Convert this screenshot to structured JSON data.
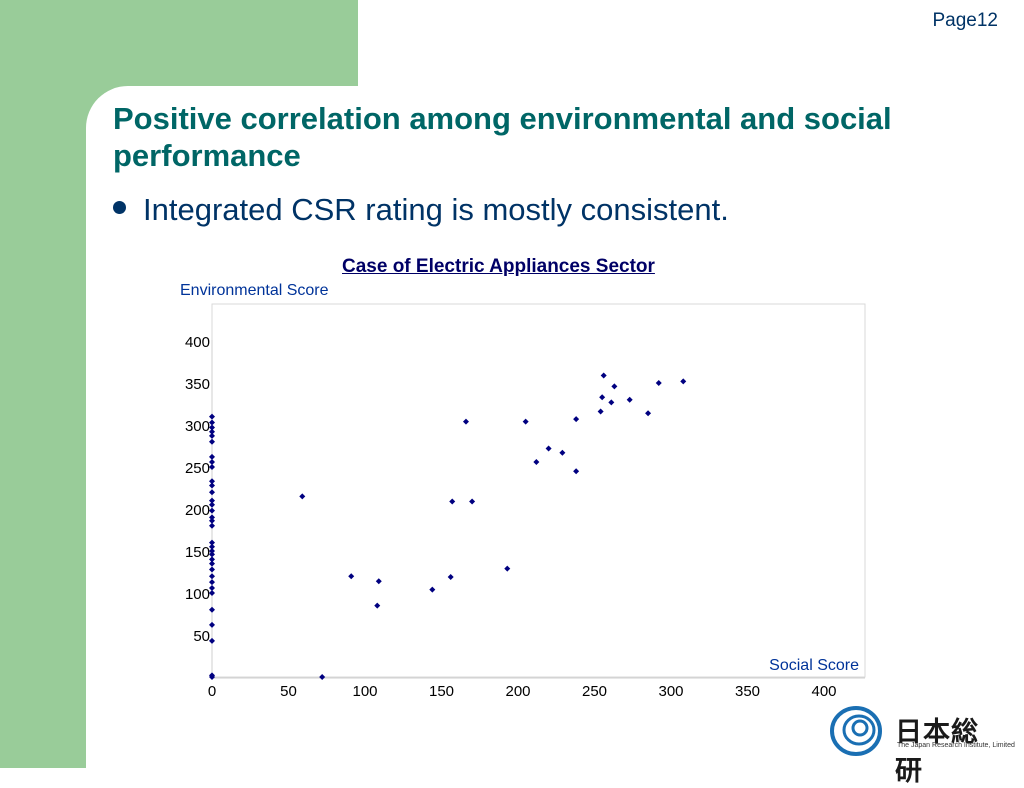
{
  "page_label": "Page12",
  "title": "Positive correlation among environmental and social performance",
  "bullet": "Integrated CSR rating is mostly consistent.",
  "logo": {
    "name_jp": "日本総研",
    "name_en": "The Japan Research Institute, Limited",
    "icon": "jri-swirl-logo-icon"
  },
  "colors": {
    "title": "#006666",
    "bullet": "#003366",
    "chart_title": "#000066",
    "axis_label": "#003399",
    "point": "#000080",
    "green_band": "#99cc99"
  },
  "chart_data": {
    "type": "scatter",
    "title": "Case of Electric Appliances Sector",
    "xlabel": "Social Score",
    "ylabel": "Environmental Score",
    "xlim": [
      0,
      430
    ],
    "ylim": [
      0,
      440
    ],
    "x_ticks": [
      0,
      50,
      100,
      150,
      200,
      250,
      300,
      350,
      400
    ],
    "y_ticks": [
      50,
      100,
      150,
      200,
      250,
      300,
      350,
      400
    ],
    "grid": false,
    "points": [
      [
        0,
        0
      ],
      [
        0,
        2
      ],
      [
        0,
        43
      ],
      [
        0,
        62
      ],
      [
        0,
        80
      ],
      [
        0,
        100
      ],
      [
        0,
        106
      ],
      [
        0,
        113
      ],
      [
        0,
        120
      ],
      [
        0,
        128
      ],
      [
        0,
        135
      ],
      [
        0,
        140
      ],
      [
        0,
        146
      ],
      [
        0,
        150
      ],
      [
        0,
        155
      ],
      [
        0,
        160
      ],
      [
        0,
        180
      ],
      [
        0,
        186
      ],
      [
        0,
        190
      ],
      [
        0,
        198
      ],
      [
        0,
        205
      ],
      [
        0,
        210
      ],
      [
        0,
        220
      ],
      [
        0,
        228
      ],
      [
        0,
        233
      ],
      [
        0,
        250
      ],
      [
        0,
        256
      ],
      [
        0,
        262
      ],
      [
        0,
        280
      ],
      [
        0,
        287
      ],
      [
        0,
        292
      ],
      [
        0,
        297
      ],
      [
        0,
        303
      ],
      [
        0,
        310
      ],
      [
        59,
        215
      ],
      [
        72,
        0
      ],
      [
        91,
        120
      ],
      [
        108,
        85
      ],
      [
        109,
        114
      ],
      [
        144,
        104
      ],
      [
        156,
        119
      ],
      [
        157,
        209
      ],
      [
        166,
        304
      ],
      [
        170,
        209
      ],
      [
        193,
        129
      ],
      [
        205,
        304
      ],
      [
        212,
        256
      ],
      [
        220,
        272
      ],
      [
        229,
        267
      ],
      [
        238,
        245
      ],
      [
        238,
        307
      ],
      [
        254,
        316
      ],
      [
        255,
        333
      ],
      [
        256,
        359
      ],
      [
        261,
        327
      ],
      [
        263,
        346
      ],
      [
        273,
        330
      ],
      [
        285,
        314
      ],
      [
        292,
        350
      ],
      [
        308,
        352
      ]
    ]
  }
}
